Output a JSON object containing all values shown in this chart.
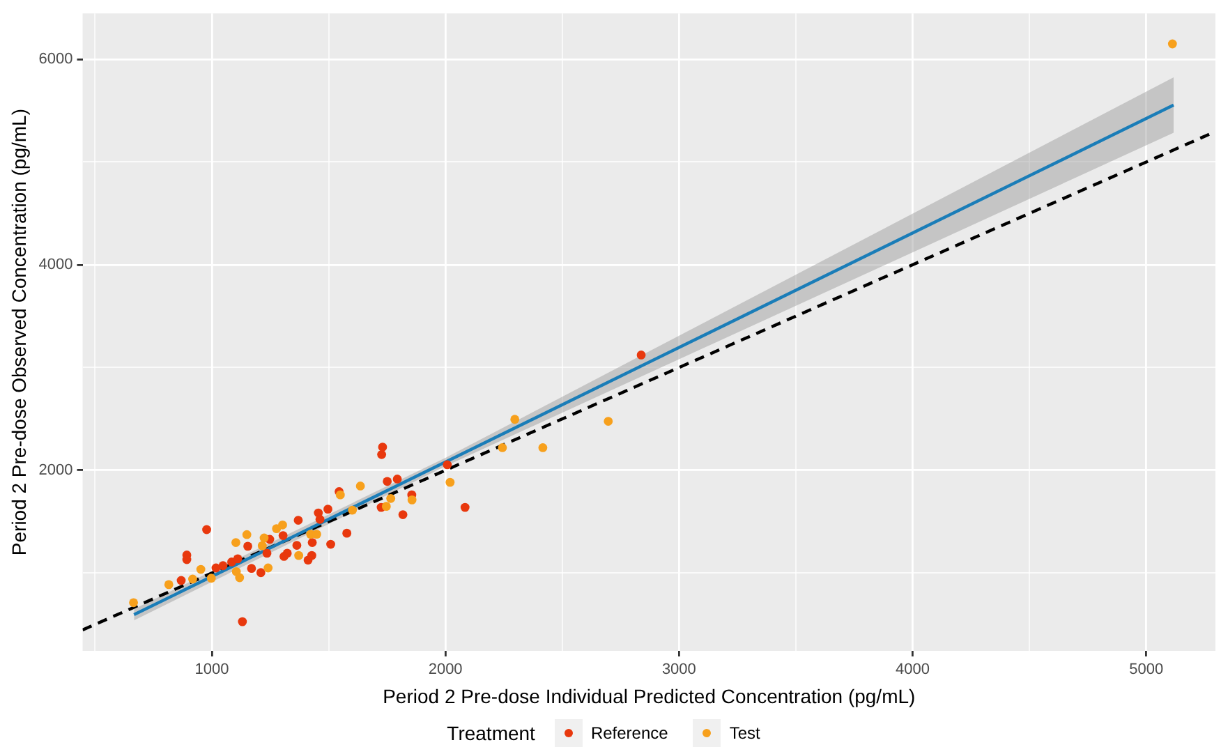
{
  "chart_data": {
    "type": "scatter",
    "xlabel": "Period 2 Pre-dose Individual Predicted Concentration (pg/mL)",
    "ylabel": "Period 2 Pre-dose Observed Concentration (pg/mL)",
    "legend_title": "Treatment",
    "legend": "bottom",
    "grid": true,
    "marker": "circle",
    "xlim": [
      447,
      5296
    ],
    "ylim": [
      243,
      6446
    ],
    "xticks": [
      {
        "value": 500,
        "label": null
      },
      1000,
      {
        "value": 1500,
        "label": null
      },
      2000,
      {
        "value": 2500,
        "label": null
      },
      3000,
      {
        "value": 3500,
        "label": null
      },
      4000,
      {
        "value": 4500,
        "label": null
      },
      5000
    ],
    "yticks": [
      {
        "value": 1000,
        "label": null
      },
      2000,
      {
        "value": 3000,
        "label": null
      },
      4000,
      {
        "value": 5000,
        "label": null
      },
      6000
    ],
    "series": [
      {
        "name": "Reference",
        "type": "scatter",
        "color": "#e8380d",
        "x": [
          978,
          893,
          893,
          869,
          1018,
          1048,
          1085,
          1111,
          1131,
          1154,
          1170,
          1210,
          1236,
          1248,
          1305,
          1323,
          1309,
          1364,
          1370,
          1412,
          1428,
          1430,
          1456,
          1463,
          1497,
          1509,
          1545,
          1578,
          1725,
          1727,
          1731,
          1751,
          1794,
          1856,
          1818,
          2008,
          2084,
          2838
        ],
        "values": [
          1423,
          1176,
          1131,
          928,
          1050,
          1072,
          1108,
          1139,
          527,
          1261,
          1045,
          1004,
          1193,
          1328,
          1365,
          1193,
          1162,
          1270,
          1514,
          1126,
          1171,
          1297,
          1585,
          1523,
          1622,
          1280,
          1793,
          1388,
          1639,
          2153,
          2226,
          1892,
          1915,
          1761,
          1568,
          2054,
          1639,
          3122
        ]
      },
      {
        "name": "Test",
        "type": "scatter",
        "color": "#f7a01c",
        "x": [
          665,
          816,
          918,
          953,
          998,
          1103,
          1105,
          1119,
          1150,
          1216,
          1224,
          1241,
          1277,
          1303,
          1372,
          1423,
          1449,
          1550,
          1636,
          1602,
          1766,
          1747,
          1857,
          2020,
          2244,
          2297,
          2417,
          2697,
          5112
        ],
        "values": [
          712,
          888,
          942,
          1036,
          950,
          1297,
          1014,
          955,
          1374,
          1266,
          1342,
          1050,
          1432,
          1468,
          1171,
          1378,
          1378,
          1761,
          1847,
          1612,
          1726,
          1649,
          1712,
          1883,
          2220,
          2496,
          2220,
          2477,
          6149
        ]
      },
      {
        "type": "line",
        "color": "#1a7db8",
        "marker": "none",
        "x": [
          667,
          2000,
          5117
        ],
        "values": [
          595,
          2081,
          5554
        ],
        "lower": [
          540,
          2040,
          5284
        ],
        "upper": [
          650,
          2122,
          5824
        ]
      },
      {
        "type": "line",
        "color": "#000000",
        "marker": "none",
        "line_style": "dashed",
        "x": [
          447,
          5296
        ],
        "values": [
          447,
          5296
        ]
      }
    ]
  }
}
